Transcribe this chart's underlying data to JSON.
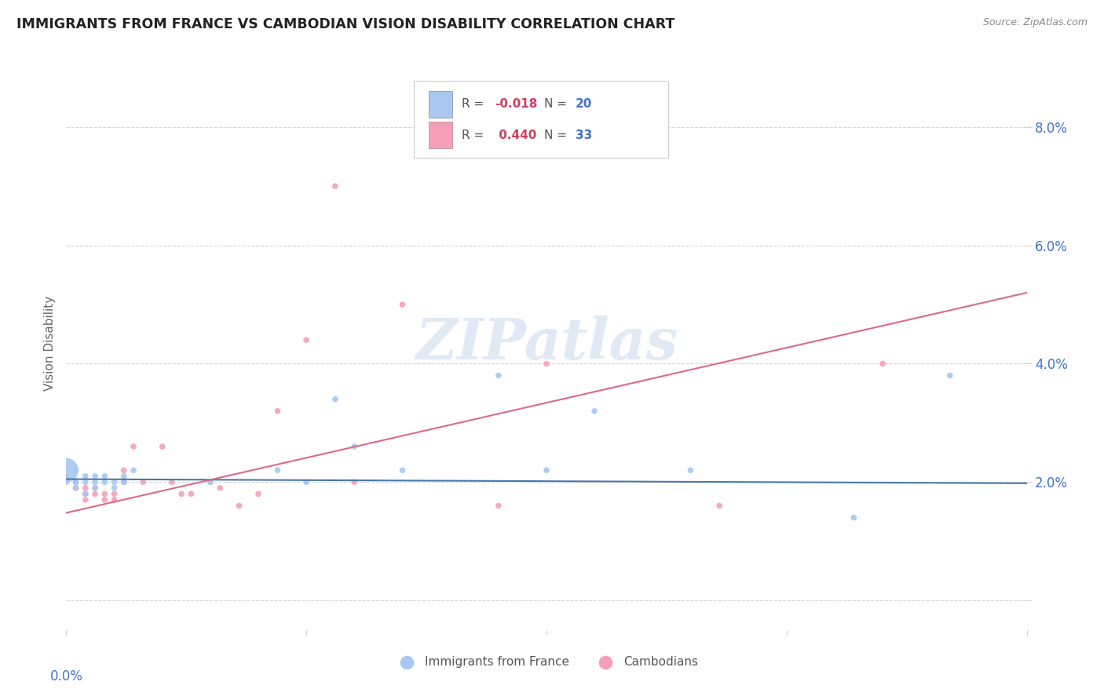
{
  "title": "IMMIGRANTS FROM FRANCE VS CAMBODIAN VISION DISABILITY CORRELATION CHART",
  "source": "Source: ZipAtlas.com",
  "ylabel": "Vision Disability",
  "xlim": [
    0.0,
    0.1
  ],
  "ylim": [
    -0.005,
    0.092
  ],
  "yticks": [
    0.0,
    0.02,
    0.04,
    0.06,
    0.08
  ],
  "ytick_labels": [
    "",
    "2.0%",
    "4.0%",
    "6.0%",
    "8.0%"
  ],
  "xticks": [
    0.0,
    0.025,
    0.05,
    0.075,
    0.1
  ],
  "blue_color": "#A8C8F0",
  "pink_color": "#F5A0B8",
  "blue_line_color": "#4878A8",
  "pink_line_color": "#E06888",
  "watermark": "ZIPatlas",
  "background_color": "#ffffff",
  "france_x": [
    0.0,
    0.0,
    0.001,
    0.001,
    0.001,
    0.002,
    0.002,
    0.002,
    0.003,
    0.003,
    0.003,
    0.004,
    0.004,
    0.005,
    0.005,
    0.006,
    0.006,
    0.007,
    0.015,
    0.022,
    0.025,
    0.028,
    0.03,
    0.035,
    0.045,
    0.05,
    0.055,
    0.065,
    0.082,
    0.092
  ],
  "france_y": [
    0.022,
    0.02,
    0.022,
    0.02,
    0.019,
    0.021,
    0.02,
    0.018,
    0.021,
    0.02,
    0.019,
    0.021,
    0.02,
    0.02,
    0.019,
    0.021,
    0.02,
    0.022,
    0.02,
    0.022,
    0.02,
    0.034,
    0.026,
    0.022,
    0.038,
    0.022,
    0.032,
    0.022,
    0.014,
    0.038
  ],
  "france_sizes": [
    500,
    30,
    30,
    30,
    30,
    30,
    30,
    30,
    30,
    30,
    30,
    30,
    30,
    30,
    30,
    30,
    30,
    30,
    30,
    30,
    30,
    30,
    30,
    30,
    30,
    30,
    30,
    30,
    30,
    30
  ],
  "cambodian_x": [
    0.0,
    0.001,
    0.001,
    0.002,
    0.002,
    0.002,
    0.003,
    0.003,
    0.004,
    0.004,
    0.005,
    0.005,
    0.006,
    0.006,
    0.007,
    0.008,
    0.01,
    0.011,
    0.012,
    0.013,
    0.015,
    0.016,
    0.018,
    0.02,
    0.022,
    0.025,
    0.028,
    0.03,
    0.035,
    0.045,
    0.05,
    0.068,
    0.085
  ],
  "cambodian_y": [
    0.021,
    0.02,
    0.019,
    0.019,
    0.018,
    0.017,
    0.019,
    0.018,
    0.018,
    0.017,
    0.018,
    0.017,
    0.022,
    0.02,
    0.026,
    0.02,
    0.026,
    0.02,
    0.018,
    0.018,
    0.02,
    0.019,
    0.016,
    0.018,
    0.032,
    0.044,
    0.07,
    0.02,
    0.05,
    0.016,
    0.04,
    0.016,
    0.04
  ],
  "cambodian_sizes": [
    30,
    30,
    30,
    30,
    30,
    30,
    30,
    30,
    30,
    30,
    30,
    30,
    30,
    30,
    30,
    30,
    30,
    30,
    30,
    30,
    30,
    30,
    30,
    30,
    30,
    30,
    30,
    30,
    30,
    30,
    30,
    30,
    30
  ],
  "blue_line_x0": 0.0,
  "blue_line_y0": 0.0205,
  "blue_line_x1": 0.1,
  "blue_line_y1": 0.0198,
  "pink_line_x0": 0.0,
  "pink_line_y0": 0.0148,
  "pink_line_x1": 0.1,
  "pink_line_y1": 0.052
}
